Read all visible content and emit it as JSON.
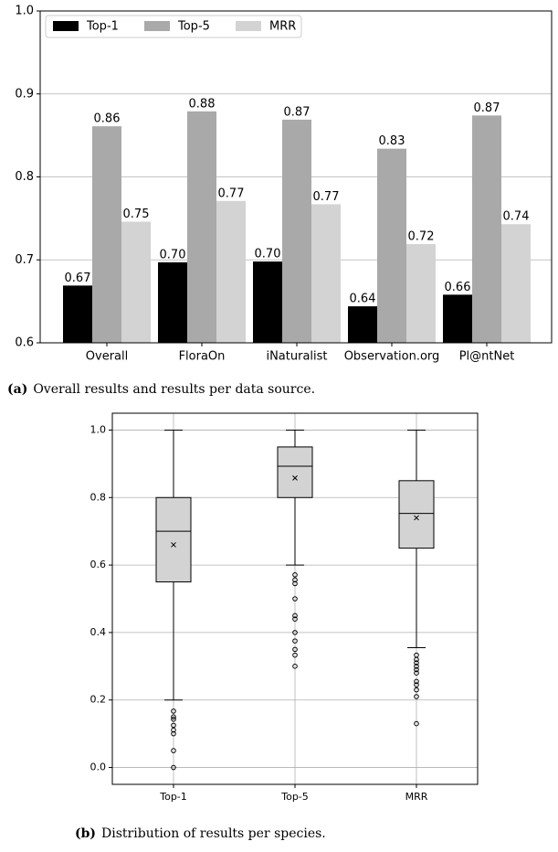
{
  "chart_data": [
    {
      "type": "bar",
      "caption_label": "(a)",
      "caption": "Overall results and results per data source.",
      "categories": [
        "Overall",
        "FloraOn",
        "iNaturalist",
        "Observation.org",
        "Pl@ntNet"
      ],
      "series": [
        {
          "name": "Top-1",
          "color": "#000000",
          "values": [
            0.669,
            0.697,
            0.698,
            0.644,
            0.658
          ],
          "value_labels": [
            "0.67",
            "0.70",
            "0.70",
            "0.64",
            "0.66"
          ]
        },
        {
          "name": "Top-5",
          "color": "#a9a9a9",
          "values": [
            0.861,
            0.879,
            0.869,
            0.834,
            0.874
          ],
          "value_labels": [
            "0.86",
            "0.88",
            "0.87",
            "0.83",
            "0.87"
          ]
        },
        {
          "name": "MRR",
          "color": "#d3d3d3",
          "values": [
            0.746,
            0.771,
            0.767,
            0.719,
            0.743
          ],
          "value_labels": [
            "0.75",
            "0.77",
            "0.77",
            "0.72",
            "0.74"
          ]
        }
      ],
      "ylim": [
        0.6,
        1
      ],
      "yticks": [
        0.6,
        0.7,
        0.8,
        0.9,
        {
          "value": 1,
          "label": "1.0"
        }
      ],
      "grid": "y",
      "legend": "upper left"
    },
    {
      "type": "box",
      "caption_label": "(b)",
      "caption": "Distribution of results per species.",
      "categories": [
        "Top-1",
        "Top-5",
        "MRR"
      ],
      "color": "#d3d3d3",
      "boxes": [
        {
          "whislo": 0.2,
          "q1": 0.55,
          "med": 0.7,
          "q3": 0.8,
          "whishi": 1,
          "mean": 0.66,
          "fliers": [
            0.167,
            0.15,
            0.143,
            0.125,
            0.111,
            0.1,
            0.05,
            0
          ]
        },
        {
          "whislo": 0.6,
          "q1": 0.8,
          "med": 0.893,
          "q3": 0.95,
          "whishi": 1,
          "mean": 0.858,
          "fliers": [
            0.571,
            0.556,
            0.545,
            0.5,
            0.45,
            0.44,
            0.4,
            0.375,
            0.35,
            0.333,
            0.3
          ]
        },
        {
          "whislo": 0.355,
          "q1": 0.65,
          "med": 0.753,
          "q3": 0.85,
          "whishi": 1,
          "mean": 0.74,
          "fliers": [
            0.333,
            0.32,
            0.31,
            0.3,
            0.29,
            0.28,
            0.255,
            0.245,
            0.23,
            0.21,
            0.13
          ]
        }
      ],
      "ylim": [
        -0.05,
        1.05
      ],
      "yticks": [
        {
          "value": 0,
          "label": "0.0"
        },
        0.2,
        0.4,
        0.6,
        0.8,
        {
          "value": 1,
          "label": "1.0"
        }
      ],
      "grid": "both"
    }
  ]
}
